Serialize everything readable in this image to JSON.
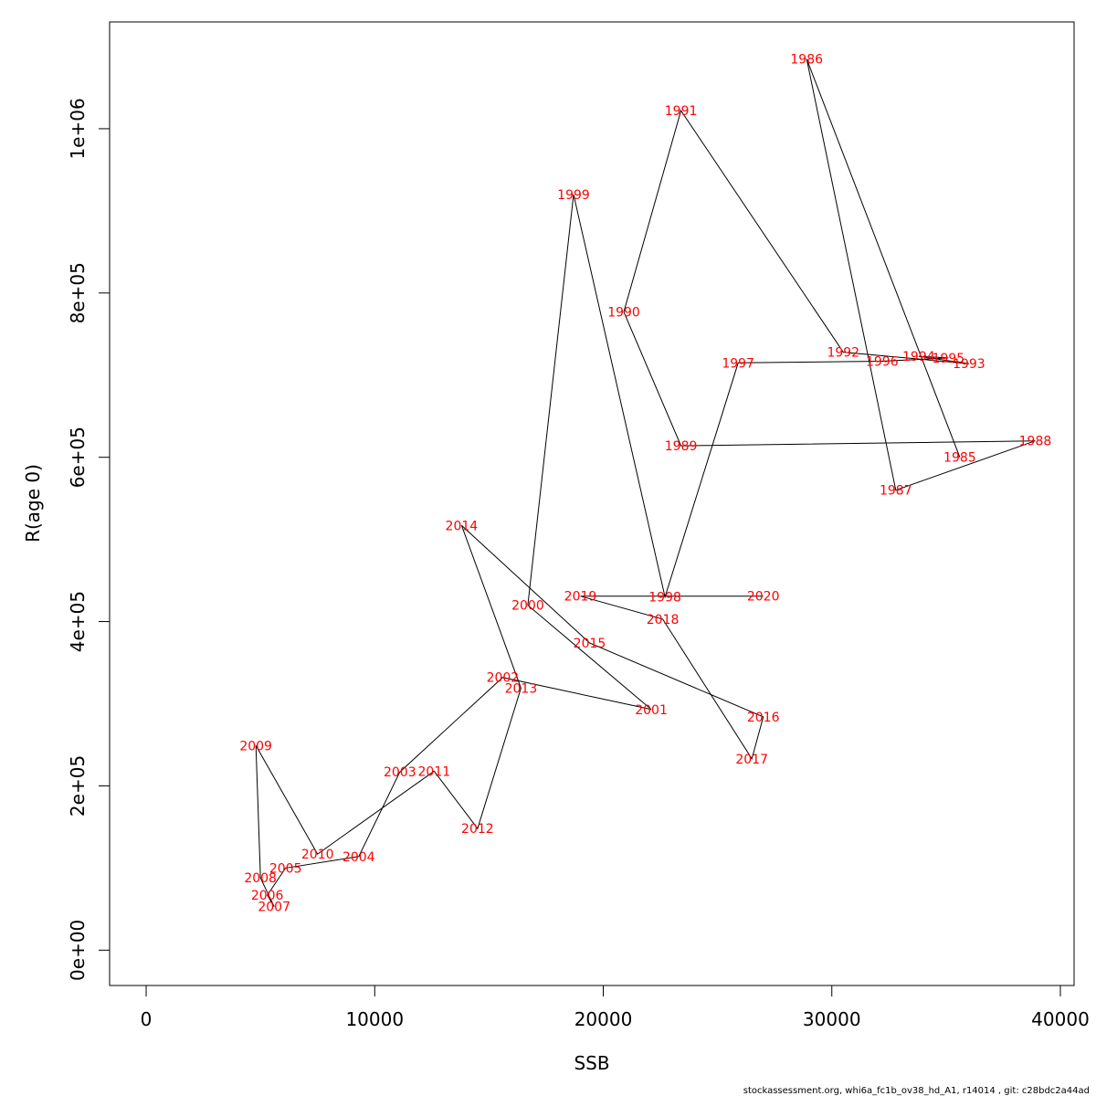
{
  "chart_data": {
    "type": "line",
    "xlabel": "SSB",
    "ylabel": "R(age 0)",
    "xlim": [
      -1600,
      40600
    ],
    "ylim": [
      -43000,
      1130000
    ],
    "x_ticks": [
      0,
      10000,
      20000,
      30000,
      40000
    ],
    "x_tick_labels": [
      "0",
      "10000",
      "20000",
      "30000",
      "40000"
    ],
    "y_ticks": [
      0,
      200000,
      400000,
      600000,
      800000,
      1000000
    ],
    "y_tick_labels": [
      "0e+00",
      "2e+05",
      "4e+05",
      "6e+05",
      "8e+05",
      "1e+06"
    ],
    "grid": false,
    "line_color": "#000000",
    "label_color": "#ff0000",
    "points": [
      {
        "year": "1985",
        "ssb": 35600,
        "r": 600000
      },
      {
        "year": "1986",
        "ssb": 28900,
        "r": 1085000
      },
      {
        "year": "1987",
        "ssb": 32800,
        "r": 560000
      },
      {
        "year": "1988",
        "ssb": 38900,
        "r": 620000
      },
      {
        "year": "1989",
        "ssb": 23400,
        "r": 614000
      },
      {
        "year": "1990",
        "ssb": 20900,
        "r": 777000
      },
      {
        "year": "1991",
        "ssb": 23400,
        "r": 1022000
      },
      {
        "year": "1992",
        "ssb": 30500,
        "r": 728000
      },
      {
        "year": "1993",
        "ssb": 36000,
        "r": 714000
      },
      {
        "year": "1994",
        "ssb": 33800,
        "r": 723000
      },
      {
        "year": "1995",
        "ssb": 35100,
        "r": 721000
      },
      {
        "year": "1996",
        "ssb": 32200,
        "r": 717000
      },
      {
        "year": "1997",
        "ssb": 25900,
        "r": 715000
      },
      {
        "year": "1998",
        "ssb": 22700,
        "r": 430000
      },
      {
        "year": "1999",
        "ssb": 18700,
        "r": 920000
      },
      {
        "year": "2000",
        "ssb": 16700,
        "r": 420000
      },
      {
        "year": "2001",
        "ssb": 22100,
        "r": 293000
      },
      {
        "year": "2002",
        "ssb": 15600,
        "r": 332000
      },
      {
        "year": "2003",
        "ssb": 11100,
        "r": 217000
      },
      {
        "year": "2004",
        "ssb": 9300,
        "r": 114000
      },
      {
        "year": "2005",
        "ssb": 6100,
        "r": 100000
      },
      {
        "year": "2006",
        "ssb": 5300,
        "r": 67000
      },
      {
        "year": "2007",
        "ssb": 5600,
        "r": 53000
      },
      {
        "year": "2008",
        "ssb": 5000,
        "r": 88000
      },
      {
        "year": "2009",
        "ssb": 4800,
        "r": 249000
      },
      {
        "year": "2010",
        "ssb": 7500,
        "r": 117000
      },
      {
        "year": "2011",
        "ssb": 12600,
        "r": 218000
      },
      {
        "year": "2012",
        "ssb": 14500,
        "r": 148000
      },
      {
        "year": "2013",
        "ssb": 16400,
        "r": 319000
      },
      {
        "year": "2014",
        "ssb": 13800,
        "r": 517000
      },
      {
        "year": "2015",
        "ssb": 19400,
        "r": 374000
      },
      {
        "year": "2016",
        "ssb": 27000,
        "r": 284000
      },
      {
        "year": "2017",
        "ssb": 26500,
        "r": 233000
      },
      {
        "year": "2018",
        "ssb": 22600,
        "r": 403000
      },
      {
        "year": "2019",
        "ssb": 19000,
        "r": 431000
      },
      {
        "year": "2020",
        "ssb": 27000,
        "r": 431000
      }
    ]
  },
  "footer": {
    "text": "stockassessment.org, whi6a_fc1b_ov38_hd_A1, r14014 , git: c28bdc2a44ad"
  }
}
